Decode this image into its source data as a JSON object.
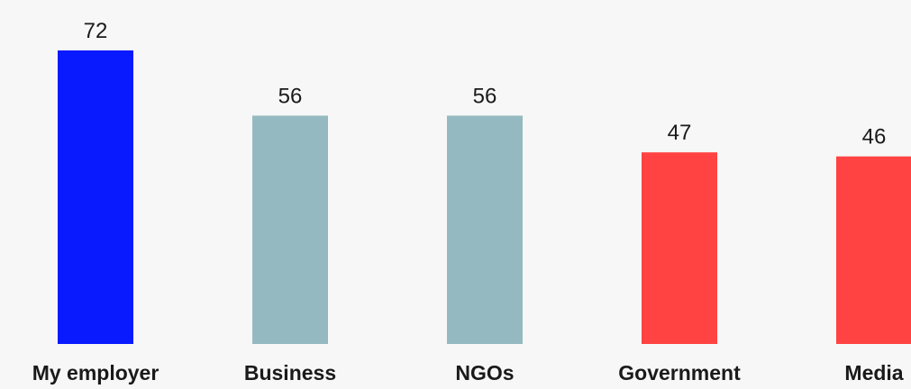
{
  "chart_data": {
    "type": "bar",
    "categories": [
      "My employer",
      "Business",
      "NGOs",
      "Government",
      "Media"
    ],
    "values": [
      72,
      56,
      56,
      47,
      46
    ],
    "bar_colors": [
      "#0a1aff",
      "#95b9c1",
      "#95b9c1",
      "#ff4242",
      "#ff4242"
    ],
    "ylim": [
      0,
      72
    ],
    "grid": false,
    "legend": "none",
    "title": "",
    "xlabel": "",
    "ylabel": ""
  }
}
